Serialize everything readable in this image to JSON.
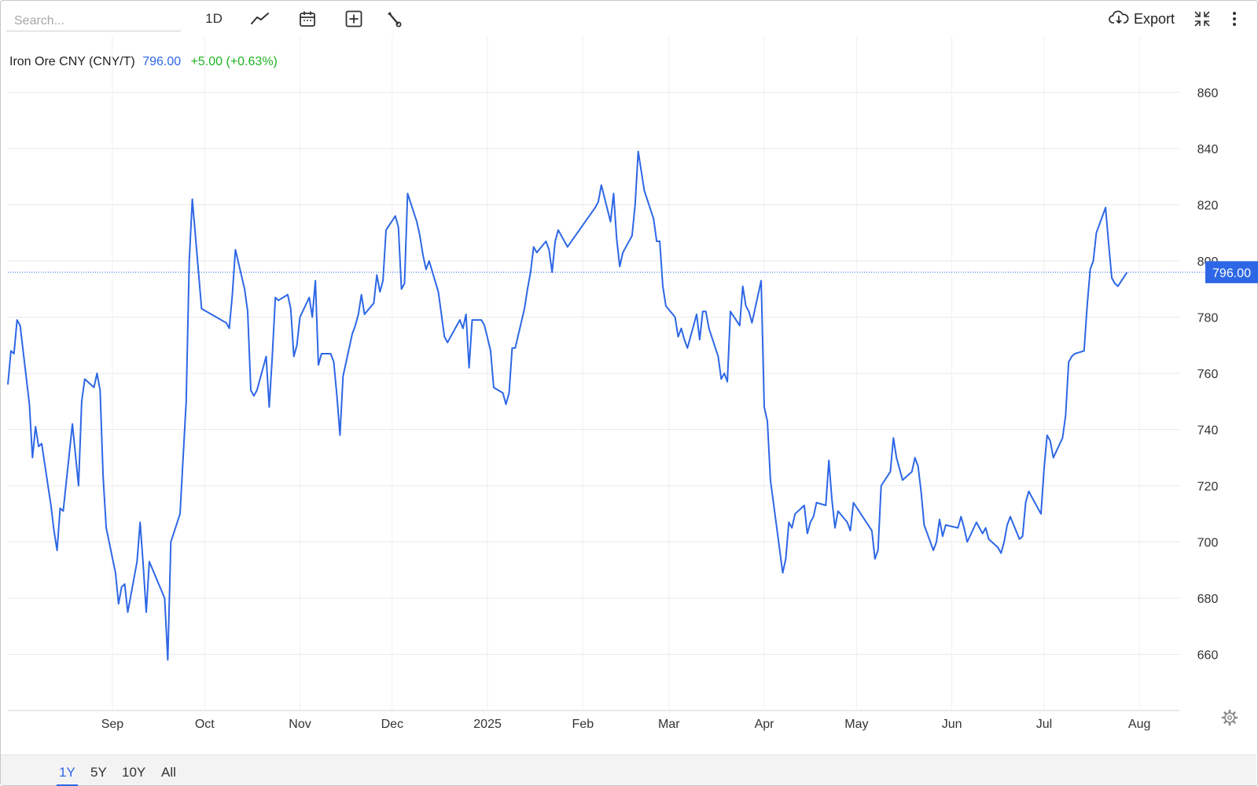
{
  "toolbar": {
    "search_placeholder": "Search...",
    "interval_label": "1D",
    "export_label": "Export"
  },
  "legend": {
    "name": "Iron Ore CNY (CNY/T)",
    "price": "796.00",
    "change": "+5.00 (+0.63%)"
  },
  "last_price_tag": "796.00",
  "ranges": [
    "1Y",
    "5Y",
    "10Y",
    "All"
  ],
  "active_range": "1Y",
  "colors": {
    "line": "#2d67e6",
    "price_text": "#2d67e6",
    "change_positive": "#1fb323",
    "tag_bg": "#2d67e6",
    "grid": "#e9e9e9"
  },
  "icons": [
    "line-chart-icon",
    "calendar-icon",
    "plus-box-icon",
    "wrench-icon",
    "cloud-download-icon",
    "collapse-icon",
    "more-vertical-icon",
    "gear-icon"
  ],
  "chart_data": {
    "type": "line",
    "title": "Iron Ore CNY (CNY/T)",
    "xlabel": "",
    "ylabel": "",
    "ylim": [
      640,
      880
    ],
    "yticks": [
      660,
      680,
      700,
      720,
      740,
      760,
      780,
      800,
      820,
      840,
      860
    ],
    "xticks": [
      {
        "label": "Sep",
        "date": "2024-09-01"
      },
      {
        "label": "Oct",
        "date": "2024-10-01"
      },
      {
        "label": "Nov",
        "date": "2024-11-01"
      },
      {
        "label": "Dec",
        "date": "2024-12-01"
      },
      {
        "label": "2025",
        "date": "2025-01-01"
      },
      {
        "label": "Feb",
        "date": "2025-02-01"
      },
      {
        "label": "Mar",
        "date": "2025-03-01"
      },
      {
        "label": "Apr",
        "date": "2025-04-01"
      },
      {
        "label": "May",
        "date": "2025-05-01"
      },
      {
        "label": "Jun",
        "date": "2025-06-01"
      },
      {
        "label": "Jul",
        "date": "2025-07-01"
      },
      {
        "label": "Aug",
        "date": "2025-08-01"
      }
    ],
    "grid": true,
    "last_value": 796,
    "series": [
      {
        "values": [
          [
            "2024-07-29",
            756
          ],
          [
            "2024-07-30",
            768
          ],
          [
            "2024-07-31",
            767
          ],
          [
            "2024-08-01",
            779
          ],
          [
            "2024-08-02",
            777
          ],
          [
            "2024-08-05",
            749
          ],
          [
            "2024-08-06",
            730
          ],
          [
            "2024-08-07",
            741
          ],
          [
            "2024-08-08",
            734
          ],
          [
            "2024-08-09",
            735
          ],
          [
            "2024-08-12",
            713
          ],
          [
            "2024-08-13",
            704
          ],
          [
            "2024-08-14",
            697
          ],
          [
            "2024-08-15",
            712
          ],
          [
            "2024-08-16",
            711
          ],
          [
            "2024-08-19",
            742
          ],
          [
            "2024-08-20",
            731
          ],
          [
            "2024-08-21",
            720
          ],
          [
            "2024-08-22",
            750
          ],
          [
            "2024-08-23",
            758
          ],
          [
            "2024-08-26",
            755
          ],
          [
            "2024-08-27",
            760
          ],
          [
            "2024-08-28",
            754
          ],
          [
            "2024-08-29",
            723
          ],
          [
            "2024-08-30",
            705
          ],
          [
            "2024-09-02",
            689
          ],
          [
            "2024-09-03",
            678
          ],
          [
            "2024-09-04",
            684
          ],
          [
            "2024-09-05",
            685
          ],
          [
            "2024-09-06",
            675
          ],
          [
            "2024-09-09",
            693
          ],
          [
            "2024-09-10",
            707
          ],
          [
            "2024-09-11",
            692
          ],
          [
            "2024-09-12",
            675
          ],
          [
            "2024-09-13",
            693
          ],
          [
            "2024-09-18",
            680
          ],
          [
            "2024-09-19",
            658
          ],
          [
            "2024-09-20",
            700
          ],
          [
            "2024-09-23",
            710
          ],
          [
            "2024-09-24",
            730
          ],
          [
            "2024-09-25",
            750
          ],
          [
            "2024-09-26",
            800
          ],
          [
            "2024-09-27",
            822
          ],
          [
            "2024-09-30",
            783
          ],
          [
            "2024-10-08",
            778
          ],
          [
            "2024-10-09",
            776
          ],
          [
            "2024-10-10",
            788
          ],
          [
            "2024-10-11",
            804
          ],
          [
            "2024-10-14",
            790
          ],
          [
            "2024-10-15",
            782
          ],
          [
            "2024-10-16",
            754
          ],
          [
            "2024-10-17",
            752
          ],
          [
            "2024-10-18",
            754
          ],
          [
            "2024-10-21",
            766
          ],
          [
            "2024-10-22",
            748
          ],
          [
            "2024-10-23",
            766
          ],
          [
            "2024-10-24",
            787
          ],
          [
            "2024-10-25",
            786
          ],
          [
            "2024-10-28",
            788
          ],
          [
            "2024-10-29",
            783
          ],
          [
            "2024-10-30",
            766
          ],
          [
            "2024-10-31",
            770
          ],
          [
            "2024-11-01",
            780
          ],
          [
            "2024-11-04",
            787
          ],
          [
            "2024-11-05",
            780
          ],
          [
            "2024-11-06",
            793
          ],
          [
            "2024-11-07",
            763
          ],
          [
            "2024-11-08",
            767
          ],
          [
            "2024-11-11",
            767
          ],
          [
            "2024-11-12",
            764
          ],
          [
            "2024-11-13",
            752
          ],
          [
            "2024-11-14",
            738
          ],
          [
            "2024-11-15",
            759
          ],
          [
            "2024-11-18",
            774
          ],
          [
            "2024-11-19",
            777
          ],
          [
            "2024-11-20",
            781
          ],
          [
            "2024-11-21",
            788
          ],
          [
            "2024-11-22",
            781
          ],
          [
            "2024-11-25",
            785
          ],
          [
            "2024-11-26",
            795
          ],
          [
            "2024-11-27",
            789
          ],
          [
            "2024-11-28",
            793
          ],
          [
            "2024-11-29",
            811
          ],
          [
            "2024-12-02",
            816
          ],
          [
            "2024-12-03",
            812
          ],
          [
            "2024-12-04",
            790
          ],
          [
            "2024-12-05",
            792
          ],
          [
            "2024-12-06",
            824
          ],
          [
            "2024-12-09",
            814
          ],
          [
            "2024-12-10",
            809
          ],
          [
            "2024-12-11",
            802
          ],
          [
            "2024-12-12",
            797
          ],
          [
            "2024-12-13",
            800
          ],
          [
            "2024-12-16",
            789
          ],
          [
            "2024-12-17",
            781
          ],
          [
            "2024-12-18",
            773
          ],
          [
            "2024-12-19",
            771
          ],
          [
            "2024-12-20",
            773
          ],
          [
            "2024-12-23",
            779
          ],
          [
            "2024-12-24",
            776
          ],
          [
            "2024-12-25",
            781
          ],
          [
            "2024-12-26",
            762
          ],
          [
            "2024-12-27",
            779
          ],
          [
            "2024-12-30",
            779
          ],
          [
            "2024-12-31",
            777
          ],
          [
            "2025-01-02",
            768
          ],
          [
            "2025-01-03",
            755
          ],
          [
            "2025-01-06",
            753
          ],
          [
            "2025-01-07",
            749
          ],
          [
            "2025-01-08",
            753
          ],
          [
            "2025-01-09",
            769
          ],
          [
            "2025-01-10",
            769
          ],
          [
            "2025-01-13",
            783
          ],
          [
            "2025-01-14",
            790
          ],
          [
            "2025-01-15",
            796
          ],
          [
            "2025-01-16",
            805
          ],
          [
            "2025-01-17",
            803
          ],
          [
            "2025-01-20",
            807
          ],
          [
            "2025-01-21",
            804
          ],
          [
            "2025-01-22",
            796
          ],
          [
            "2025-01-23",
            807
          ],
          [
            "2025-01-24",
            811
          ],
          [
            "2025-01-27",
            805
          ],
          [
            "2025-02-05",
            819
          ],
          [
            "2025-02-06",
            821
          ],
          [
            "2025-02-07",
            827
          ],
          [
            "2025-02-10",
            814
          ],
          [
            "2025-02-11",
            824
          ],
          [
            "2025-02-12",
            808
          ],
          [
            "2025-02-13",
            798
          ],
          [
            "2025-02-14",
            803
          ],
          [
            "2025-02-17",
            809
          ],
          [
            "2025-02-18",
            820
          ],
          [
            "2025-02-19",
            839
          ],
          [
            "2025-02-20",
            832
          ],
          [
            "2025-02-21",
            825
          ],
          [
            "2025-02-24",
            815
          ],
          [
            "2025-02-25",
            807
          ],
          [
            "2025-02-26",
            807
          ],
          [
            "2025-02-27",
            791
          ],
          [
            "2025-02-28",
            784
          ],
          [
            "2025-03-03",
            780
          ],
          [
            "2025-03-04",
            773
          ],
          [
            "2025-03-05",
            776
          ],
          [
            "2025-03-06",
            772
          ],
          [
            "2025-03-07",
            769
          ],
          [
            "2025-03-10",
            781
          ],
          [
            "2025-03-11",
            772
          ],
          [
            "2025-03-12",
            782
          ],
          [
            "2025-03-13",
            782
          ],
          [
            "2025-03-14",
            776
          ],
          [
            "2025-03-17",
            766
          ],
          [
            "2025-03-18",
            758
          ],
          [
            "2025-03-19",
            760
          ],
          [
            "2025-03-20",
            757
          ],
          [
            "2025-03-21",
            782
          ],
          [
            "2025-03-24",
            777
          ],
          [
            "2025-03-25",
            791
          ],
          [
            "2025-03-26",
            784
          ],
          [
            "2025-03-27",
            782
          ],
          [
            "2025-03-28",
            778
          ],
          [
            "2025-03-31",
            793
          ],
          [
            "2025-04-01",
            748
          ],
          [
            "2025-04-02",
            743
          ],
          [
            "2025-04-03",
            722
          ],
          [
            "2025-04-07",
            689
          ],
          [
            "2025-04-08",
            694
          ],
          [
            "2025-04-09",
            707
          ],
          [
            "2025-04-10",
            705
          ],
          [
            "2025-04-11",
            710
          ],
          [
            "2025-04-14",
            713
          ],
          [
            "2025-04-15",
            703
          ],
          [
            "2025-04-16",
            707
          ],
          [
            "2025-04-17",
            709
          ],
          [
            "2025-04-18",
            714
          ],
          [
            "2025-04-21",
            713
          ],
          [
            "2025-04-22",
            729
          ],
          [
            "2025-04-23",
            715
          ],
          [
            "2025-04-24",
            705
          ],
          [
            "2025-04-25",
            711
          ],
          [
            "2025-04-28",
            707
          ],
          [
            "2025-04-29",
            704
          ],
          [
            "2025-04-30",
            714
          ],
          [
            "2025-05-06",
            704
          ],
          [
            "2025-05-07",
            694
          ],
          [
            "2025-05-08",
            697
          ],
          [
            "2025-05-09",
            720
          ],
          [
            "2025-05-12",
            725
          ],
          [
            "2025-05-13",
            737
          ],
          [
            "2025-05-14",
            730
          ],
          [
            "2025-05-15",
            726
          ],
          [
            "2025-05-16",
            722
          ],
          [
            "2025-05-19",
            725
          ],
          [
            "2025-05-20",
            730
          ],
          [
            "2025-05-21",
            727
          ],
          [
            "2025-05-22",
            718
          ],
          [
            "2025-05-23",
            706
          ],
          [
            "2025-05-26",
            697
          ],
          [
            "2025-05-27",
            700
          ],
          [
            "2025-05-28",
            708
          ],
          [
            "2025-05-29",
            702
          ],
          [
            "2025-05-30",
            706
          ],
          [
            "2025-06-03",
            705
          ],
          [
            "2025-06-04",
            709
          ],
          [
            "2025-06-05",
            705
          ],
          [
            "2025-06-06",
            700
          ],
          [
            "2025-06-09",
            707
          ],
          [
            "2025-06-10",
            705
          ],
          [
            "2025-06-11",
            703
          ],
          [
            "2025-06-12",
            705
          ],
          [
            "2025-06-13",
            701
          ],
          [
            "2025-06-16",
            698
          ],
          [
            "2025-06-17",
            696
          ],
          [
            "2025-06-18",
            700
          ],
          [
            "2025-06-19",
            706
          ],
          [
            "2025-06-20",
            709
          ],
          [
            "2025-06-23",
            701
          ],
          [
            "2025-06-24",
            702
          ],
          [
            "2025-06-25",
            714
          ],
          [
            "2025-06-26",
            718
          ],
          [
            "2025-06-27",
            716
          ],
          [
            "2025-06-30",
            710
          ],
          [
            "2025-07-01",
            726
          ],
          [
            "2025-07-02",
            738
          ],
          [
            "2025-07-03",
            736
          ],
          [
            "2025-07-04",
            730
          ],
          [
            "2025-07-07",
            737
          ],
          [
            "2025-07-08",
            745
          ],
          [
            "2025-07-09",
            764
          ],
          [
            "2025-07-10",
            766
          ],
          [
            "2025-07-11",
            767
          ],
          [
            "2025-07-14",
            768
          ],
          [
            "2025-07-15",
            784
          ],
          [
            "2025-07-16",
            797
          ],
          [
            "2025-07-17",
            800
          ],
          [
            "2025-07-18",
            810
          ],
          [
            "2025-07-21",
            819
          ],
          [
            "2025-07-22",
            806
          ],
          [
            "2025-07-23",
            794
          ],
          [
            "2025-07-24",
            792
          ],
          [
            "2025-07-25",
            791
          ],
          [
            "2025-07-28",
            796
          ]
        ]
      }
    ]
  }
}
